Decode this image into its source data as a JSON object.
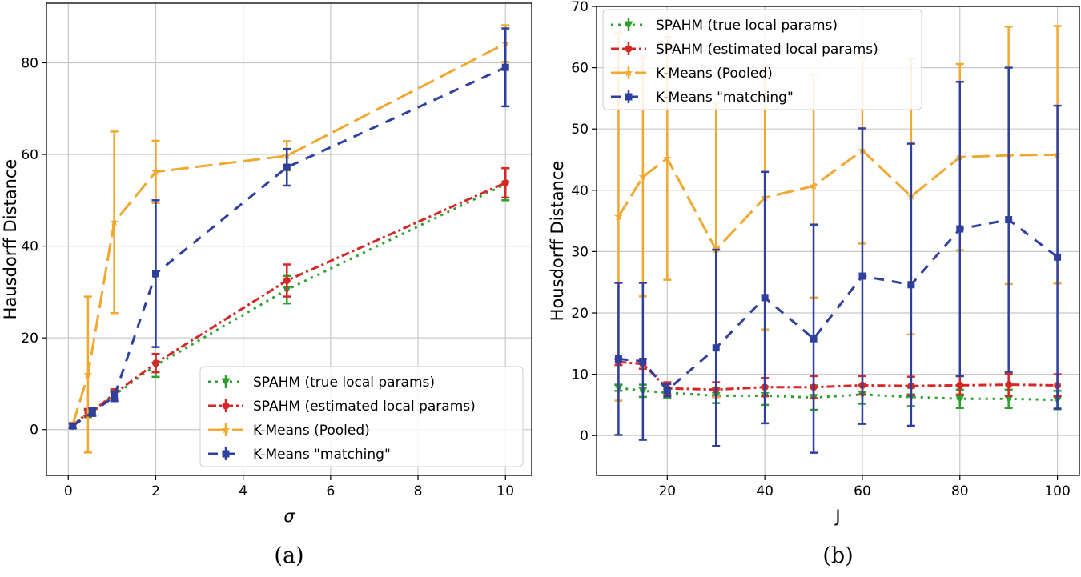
{
  "chart_data": [
    {
      "type": "line",
      "caption": "(a)",
      "xlabel": "σ",
      "ylabel": "Hausdorff Distance",
      "xlim": [
        -0.5,
        10.6
      ],
      "ylim": [
        -10,
        93
      ],
      "xticks": [
        0,
        2,
        4,
        6,
        8,
        10
      ],
      "yticks": [
        0,
        20,
        40,
        60,
        80
      ],
      "grid": true,
      "legend_position": "lower-right",
      "x": [
        0.1,
        0.45,
        0.55,
        1.05,
        2.0,
        5.0,
        10.0
      ],
      "series": [
        {
          "name": "SPAHM (true local params)",
          "color": "#2ca02c",
          "dash": "dotted",
          "marker": "triangle-down",
          "values": [
            0.8,
            3.5,
            3.8,
            7.5,
            14.0,
            30.5,
            53.5
          ],
          "err": [
            0.5,
            0.8,
            0.8,
            1.2,
            2.5,
            3.0,
            3.5
          ]
        },
        {
          "name": "SPAHM (estimated local params)",
          "color": "#d62728",
          "dash": "dashdot",
          "marker": "circle",
          "values": [
            0.9,
            3.7,
            3.9,
            7.8,
            14.5,
            32.5,
            53.8
          ],
          "err": [
            0.5,
            0.8,
            0.8,
            1.0,
            2.0,
            3.5,
            3.2
          ]
        },
        {
          "name": "K-Means (Pooled)",
          "color": "#f0a830",
          "dash": "longdash",
          "marker": "star",
          "values": [
            1.0,
            12.0,
            null,
            45.2,
            56.2,
            59.7,
            84.2
          ],
          "err": [
            0.5,
            17.0,
            null,
            19.8,
            6.8,
            3.2,
            4.0
          ]
        },
        {
          "name": "K-Means \"matching\"",
          "color": "#2f3f9e",
          "dash": "dashed",
          "marker": "square",
          "values": [
            0.8,
            null,
            3.8,
            7.2,
            34.0,
            57.2,
            79.0
          ],
          "err": [
            0.5,
            null,
            0.8,
            1.0,
            16.0,
            4.0,
            8.5
          ]
        }
      ]
    },
    {
      "type": "line",
      "caption": "(b)",
      "xlabel": "J",
      "ylabel": "Housdorff Distance",
      "xlim": [
        5.5,
        104.5
      ],
      "ylim": [
        -6.5,
        70
      ],
      "xticks": [
        20,
        40,
        60,
        80,
        100
      ],
      "yticks": [
        0,
        10,
        20,
        30,
        40,
        50,
        60,
        70
      ],
      "grid": true,
      "legend_position": "upper-left",
      "x": [
        10,
        15,
        20,
        30,
        40,
        50,
        60,
        70,
        80,
        90,
        100
      ],
      "series": [
        {
          "name": "SPAHM (true local params)",
          "color": "#2ca02c",
          "dash": "dotted",
          "marker": "triangle-down",
          "values": [
            7.8,
            7.3,
            7.0,
            6.5,
            6.5,
            6.2,
            6.7,
            6.3,
            6.0,
            6.0,
            5.8
          ],
          "err": [
            0.5,
            1.0,
            0.8,
            1.2,
            1.5,
            2.0,
            1.5,
            1.5,
            1.5,
            1.5,
            1.5
          ]
        },
        {
          "name": "SPAHM (estimated local params)",
          "color": "#d62728",
          "dash": "dashdot",
          "marker": "circle",
          "values": [
            12.0,
            11.7,
            7.7,
            7.5,
            7.9,
            7.9,
            8.2,
            8.1,
            8.2,
            8.3,
            8.2
          ],
          "err": [
            0.5,
            0.8,
            1.0,
            1.2,
            1.5,
            1.8,
            1.5,
            1.5,
            1.5,
            1.8,
            1.8
          ]
        },
        {
          "name": "K-Means (Pooled)",
          "color": "#f0a830",
          "dash": "longdash",
          "marker": "star",
          "values": [
            35.7,
            42.2,
            45.2,
            30.3,
            38.8,
            40.7,
            46.5,
            39.0,
            45.4,
            45.7,
            45.8
          ],
          "err": [
            30.0,
            19.5,
            19.8,
            24.0,
            21.5,
            18.2,
            15.2,
            22.5,
            15.2,
            21.0,
            21.0
          ]
        },
        {
          "name": "K-Means \"matching\"",
          "color": "#2f3f9e",
          "dash": "dashed",
          "marker": "square",
          "values": [
            12.5,
            12.1,
            7.4,
            14.3,
            22.5,
            15.8,
            26.0,
            24.6,
            33.7,
            35.2,
            29.1
          ],
          "err": [
            12.4,
            12.8,
            1.0,
            16.0,
            20.5,
            18.6,
            24.1,
            23.0,
            24.0,
            24.8,
            24.7
          ]
        }
      ]
    }
  ]
}
